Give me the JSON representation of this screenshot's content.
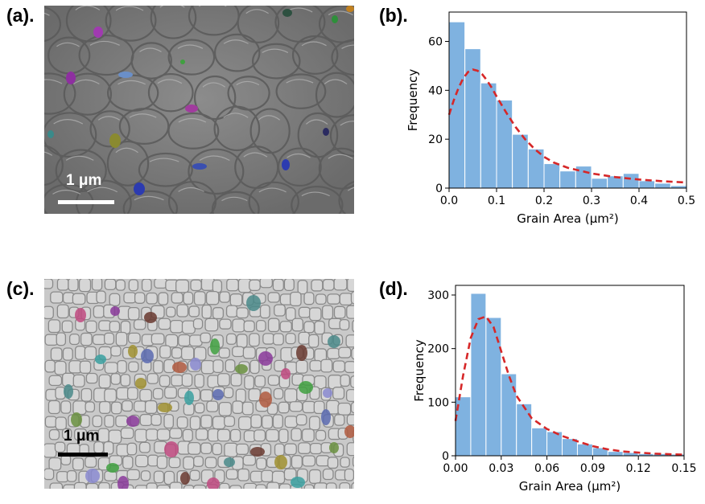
{
  "panels": {
    "a": {
      "label": "(a).",
      "scale_bar": "1 μm"
    },
    "b": {
      "label": "(b)."
    },
    "c": {
      "label": "(c).",
      "scale_bar": "1 μm"
    },
    "d": {
      "label": "(d)."
    }
  },
  "colors": {
    "bar_fill": "#7fb2e0",
    "bar_edge": "#ffffff",
    "fit_line": "#d62728",
    "scale_bar_a": "#ffffff",
    "scale_bar_c": "#000000"
  },
  "chart_data": [
    {
      "panel": "b",
      "type": "bar",
      "bin_width": 0.0333,
      "x": [
        0.0,
        0.0333,
        0.0667,
        0.1,
        0.1333,
        0.1667,
        0.2,
        0.2333,
        0.2667,
        0.3,
        0.3333,
        0.3667,
        0.4,
        0.4333,
        0.4667
      ],
      "values": [
        68,
        57,
        43,
        36,
        22,
        16,
        10,
        7,
        9,
        4,
        5,
        6,
        3,
        2,
        1
      ],
      "fit_curve": {
        "x": [
          0.0,
          0.01,
          0.02,
          0.03,
          0.04,
          0.05,
          0.06,
          0.07,
          0.08,
          0.09,
          0.1,
          0.12,
          0.14,
          0.16,
          0.18,
          0.2,
          0.22,
          0.25,
          0.3,
          0.35,
          0.4,
          0.45,
          0.5
        ],
        "y": [
          30,
          36,
          41,
          45,
          47.5,
          48.5,
          48,
          46.5,
          44,
          41,
          37.5,
          31,
          25,
          20,
          16,
          12.8,
          10.5,
          8.3,
          6,
          4.5,
          3.5,
          2.8,
          2.3
        ]
      },
      "xlabel": "Grain Area (μm²)",
      "ylabel": "Frequency",
      "xlim": [
        0.0,
        0.5
      ],
      "ylim": [
        0,
        72
      ],
      "xticks": [
        0.0,
        0.1,
        0.2,
        0.3,
        0.4,
        0.5
      ],
      "xtick_labels": [
        "0.0",
        "0.1",
        "0.2",
        "0.3",
        "0.4",
        "0.5"
      ],
      "yticks": [
        0,
        20,
        40,
        60
      ],
      "ytick_labels": [
        "0",
        "20",
        "40",
        "60"
      ],
      "grid": false
    },
    {
      "panel": "d",
      "type": "bar",
      "bin_width": 0.01,
      "x": [
        0.0,
        0.01,
        0.02,
        0.03,
        0.04,
        0.05,
        0.06,
        0.07,
        0.08,
        0.09,
        0.1,
        0.11,
        0.12,
        0.13,
        0.14
      ],
      "values": [
        110,
        303,
        258,
        153,
        97,
        52,
        45,
        32,
        22,
        15,
        8,
        6,
        4,
        4,
        3
      ],
      "fit_curve": {
        "x": [
          0.0,
          0.005,
          0.01,
          0.015,
          0.02,
          0.025,
          0.03,
          0.035,
          0.04,
          0.05,
          0.06,
          0.07,
          0.08,
          0.09,
          0.1,
          0.11,
          0.12,
          0.13,
          0.15
        ],
        "y": [
          65,
          150,
          220,
          255,
          260,
          240,
          195,
          150,
          112,
          70,
          50,
          37,
          27,
          18,
          12,
          8,
          6,
          4,
          2
        ]
      },
      "xlabel": "Grain Area (μm²)",
      "ylabel": "Frequency",
      "xlim": [
        0.0,
        0.15
      ],
      "ylim": [
        0,
        318
      ],
      "xticks": [
        0.0,
        0.03,
        0.06,
        0.09,
        0.12,
        0.15
      ],
      "xtick_labels": [
        "0.00",
        "0.03",
        "0.06",
        "0.09",
        "0.12",
        "0.15"
      ],
      "yticks": [
        0,
        100,
        200,
        300
      ],
      "ytick_labels": [
        "0",
        "100",
        "200",
        "300"
      ],
      "grid": false
    }
  ]
}
